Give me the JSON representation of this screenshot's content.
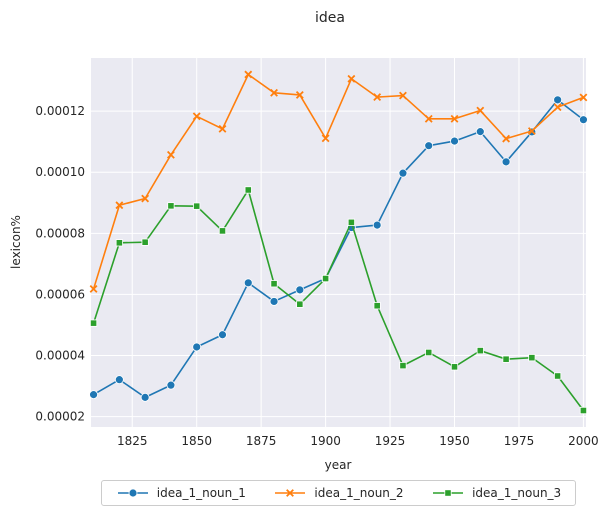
{
  "chart_data": {
    "type": "line",
    "title": "idea",
    "xlabel": "year",
    "ylabel": "lexicon%",
    "x": [
      1810,
      1820,
      1830,
      1840,
      1850,
      1860,
      1870,
      1880,
      1890,
      1900,
      1910,
      1920,
      1930,
      1940,
      1950,
      1960,
      1970,
      1980,
      1990,
      2000
    ],
    "xlim": [
      1809,
      2001
    ],
    "ylim": [
      1.66e-05,
      0.0001374
    ],
    "xticks": [
      1825,
      1850,
      1875,
      1900,
      1925,
      1950,
      1975,
      2000
    ],
    "xtick_labels": [
      "1825",
      "1850",
      "1875",
      "1900",
      "1925",
      "1950",
      "1975",
      "2000"
    ],
    "yticks": [
      2e-05,
      4e-05,
      6e-05,
      8e-05,
      0.0001,
      0.00012
    ],
    "ytick_labels": [
      "0.00002",
      "0.00004",
      "0.00006",
      "0.00008",
      "0.00010",
      "0.00012"
    ],
    "grid": true,
    "legend_position": "bottom-center",
    "series": [
      {
        "name": "idea_1_noun_1",
        "color": "#1f77b4",
        "marker": "circle",
        "values": [
          2.72e-05,
          3.21e-05,
          2.63e-05,
          3.03e-05,
          4.28e-05,
          4.68e-05,
          6.38e-05,
          5.77e-05,
          6.15e-05,
          6.52e-05,
          8.19e-05,
          8.27e-05,
          9.97e-05,
          0.0001087,
          0.0001102,
          0.0001133,
          0.0001034,
          0.0001132,
          0.0001237,
          0.0001172
        ]
      },
      {
        "name": "idea_1_noun_2",
        "color": "#ff7f0e",
        "marker": "x",
        "values": [
          6.18e-05,
          8.92e-05,
          9.14e-05,
          0.0001057,
          0.0001183,
          0.0001142,
          0.000132,
          0.000126,
          0.0001253,
          0.0001111,
          0.0001306,
          0.0001246,
          0.0001251,
          0.0001175,
          0.0001175,
          0.0001202,
          0.000111,
          0.0001135,
          0.0001213,
          0.0001245
        ]
      },
      {
        "name": "idea_1_noun_3",
        "color": "#2ca02c",
        "marker": "square",
        "values": [
          5.06e-05,
          7.69e-05,
          7.71e-05,
          8.9e-05,
          8.89e-05,
          8.08e-05,
          9.42e-05,
          6.35e-05,
          5.68e-05,
          6.52e-05,
          8.36e-05,
          5.63e-05,
          3.67e-05,
          4.1e-05,
          3.63e-05,
          4.16e-05,
          3.88e-05,
          3.93e-05,
          3.33e-05,
          2.2e-05
        ]
      }
    ]
  }
}
